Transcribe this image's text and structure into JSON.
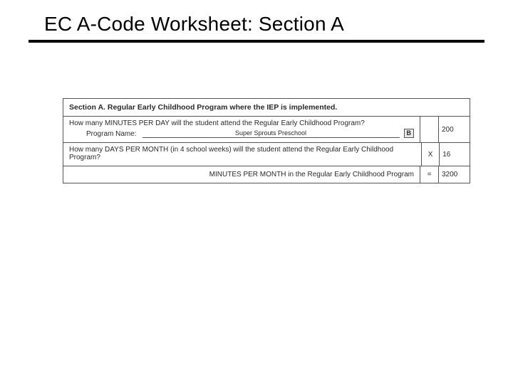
{
  "title": "EC A-Code Worksheet: Section A",
  "section_header": "Section A. Regular Early Childhood Program where the IEP is implemented.",
  "row1": {
    "question": "How many MINUTES PER DAY will the student attend the Regular Early Childhood Program?",
    "program_label": "Program Name:",
    "program_name": "Super Sprouts Preschool",
    "badge": "B",
    "value": "200"
  },
  "row2": {
    "question": "How many DAYS PER MONTH (in 4 school weeks) will the student attend the Regular Early Childhood Program?",
    "op": "X",
    "value": "16"
  },
  "row3": {
    "label": "MINUTES PER MONTH in the Regular Early Childhood Program",
    "op": "=",
    "value": "3200"
  },
  "colors": {
    "text": "#2a2a2a",
    "border": "#555555",
    "background": "#ffffff",
    "badge_bg": "#e8e8e8"
  }
}
